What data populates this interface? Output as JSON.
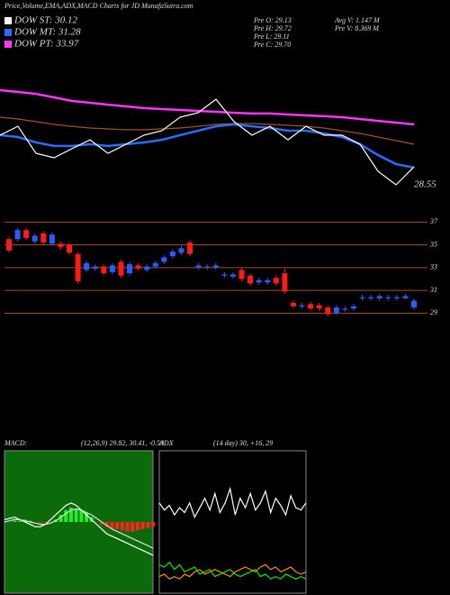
{
  "header": {
    "title": "Price,Volume,EMA,ADX,MACD Charts for JD MunafaSutra.com",
    "legend": [
      {
        "name": "DOW ST: 30.12",
        "color": "#ffffff"
      },
      {
        "name": "DOW MT: 31.28",
        "color": "#2a6bff"
      },
      {
        "name": "DOW PT: 33.97",
        "color": "#ff33ff"
      }
    ],
    "stats": [
      "Pre O: 29.13",
      "Avg V: 1.147 M",
      "Pre H: 29.72",
      "Pre V: 8.369 M",
      "Pre L: 29.11",
      "Pre C: 29.70"
    ]
  },
  "chart_data": [
    {
      "type": "candlestick",
      "ylim": [
        28,
        37.5
      ],
      "yticks": [
        37,
        35,
        33,
        31,
        29
      ],
      "grid": true,
      "grid_color": "#a0522d",
      "up_color": "#2a5cff",
      "down_color": "#ff1a1a",
      "open": [
        35.5,
        35.5,
        36.3,
        35.3,
        36,
        35.1,
        35.1,
        35,
        34.2,
        32.8,
        32.9,
        33.1,
        32.6,
        33.5,
        32.5,
        33.2,
        32.8,
        33.1,
        33.5,
        34,
        34.3,
        35.2,
        33,
        33,
        33,
        32.3,
        32.2,
        32.8,
        32.3,
        31.7,
        31.7,
        32.1,
        32.5,
        29.9,
        29.6,
        29.8,
        29.7,
        29.5,
        29,
        29.3,
        29.4,
        30.3,
        30.3,
        30.3,
        30.3,
        30.3,
        30.3,
        29.5
      ],
      "high": [
        35.7,
        36.5,
        36.5,
        36,
        36.2,
        36.1,
        35.3,
        35.2,
        34.4,
        33.6,
        33.3,
        33.3,
        33.4,
        33.7,
        33.5,
        33.4,
        33.3,
        33.6,
        34.1,
        34.6,
        34.9,
        35.4,
        33.4,
        33.3,
        33.4,
        32.6,
        32.6,
        33,
        32.5,
        32.1,
        32.1,
        32.3,
        32.9,
        30.1,
        29.9,
        30,
        29.9,
        29.7,
        29.7,
        29.6,
        29.8,
        30.6,
        30.6,
        30.7,
        30.6,
        30.6,
        30.7,
        30.3
      ],
      "low": [
        34.3,
        35.3,
        35.4,
        35.1,
        35,
        34.9,
        34.6,
        34.1,
        31.6,
        32.6,
        32.7,
        32.3,
        32.4,
        32.1,
        32.3,
        32.7,
        32.6,
        32.9,
        33.3,
        33.8,
        34.1,
        34,
        32.8,
        32.8,
        32.8,
        32.1,
        32,
        31.8,
        31.4,
        31.5,
        31.5,
        31.4,
        30.7,
        29.4,
        29.4,
        29.2,
        29.2,
        28.7,
        28.8,
        29.1,
        29.2,
        30.1,
        30.1,
        30.1,
        30.1,
        30.1,
        30.2,
        29.3
      ],
      "close": [
        34.5,
        36.3,
        35.6,
        35.8,
        35.2,
        35.9,
        34.8,
        34.3,
        31.8,
        33.4,
        33.1,
        32.5,
        33.2,
        32.3,
        33.3,
        32.9,
        33.1,
        33.4,
        33.9,
        34.4,
        34.7,
        34.2,
        33.2,
        33.1,
        33.2,
        32.4,
        32.4,
        32,
        31.6,
        31.9,
        31.9,
        31.6,
        30.9,
        29.6,
        29.7,
        29.4,
        29.4,
        28.9,
        29.5,
        29.4,
        29.6,
        30.4,
        30.4,
        30.5,
        30.4,
        30.4,
        30.5,
        30.1
      ]
    },
    {
      "type": "line",
      "ylim": [
        27,
        38
      ],
      "annotation": "28.55",
      "series": [
        {
          "color": "#ff33ff",
          "width": 2.5,
          "values": [
            36,
            35.87,
            35.73,
            35.47,
            35.2,
            35.07,
            34.93,
            34.8,
            34.67,
            34.6,
            34.53,
            34.47,
            34.4,
            34.33,
            34.27,
            34.27,
            34.2,
            34.13,
            34.07,
            34,
            33.87,
            33.73,
            33.6,
            33.47
          ]
        },
        {
          "color": "#a0522d",
          "width": 1.2,
          "values": [
            34,
            33.87,
            33.67,
            33.47,
            33.33,
            33.2,
            33.13,
            33.07,
            33.07,
            33.13,
            33.2,
            33.33,
            33.47,
            33.53,
            33.53,
            33.47,
            33.4,
            33.33,
            33.2,
            33,
            32.8,
            32.53,
            32.27,
            32
          ]
        },
        {
          "color": "#2a6bff",
          "width": 2.5,
          "values": [
            32.67,
            32.53,
            32.13,
            31.87,
            31.87,
            32,
            31.87,
            32,
            32.13,
            32.33,
            32.67,
            33,
            33.33,
            33.47,
            33.33,
            33.2,
            33,
            33,
            32.8,
            32.53,
            32,
            31.2,
            30.53,
            30.27
          ]
        },
        {
          "color": "#ffffff",
          "width": 1.2,
          "values": [
            32.67,
            33.33,
            31.33,
            31,
            31.67,
            32.33,
            31.33,
            32,
            32.67,
            33,
            34,
            34.33,
            35.33,
            33.67,
            32.67,
            33.33,
            32.33,
            33.33,
            32.67,
            32.67,
            32,
            30,
            29,
            30.33
          ]
        }
      ]
    },
    {
      "type": "macd",
      "title": "MACD:",
      "subtitle": "(12,26,9) 29.82, 30.41, -0.59",
      "ylim": [
        -3,
        3
      ],
      "background": "#0b6b0b",
      "up_color": "#22ee22",
      "down_color": "#ff2222",
      "histogram": [
        0,
        0,
        0.05,
        0.05,
        0.1,
        0.05,
        0,
        -0.05,
        -0.05,
        0,
        0.1,
        0.3,
        0.5,
        0.6,
        0.55,
        0.5,
        0.4,
        0.2,
        0,
        -0.1,
        -0.2,
        -0.3,
        -0.3,
        -0.35,
        -0.4,
        -0.4,
        -0.35,
        -0.3,
        -0.25,
        -0.2
      ],
      "series": [
        {
          "color": "#ffffff",
          "values": [
            0.1,
            0.15,
            0.2,
            0.1,
            0,
            -0.1,
            -0.2,
            -0.2,
            -0.1,
            0.1,
            0.3,
            0.5,
            0.7,
            0.8,
            0.7,
            0.5,
            0.3,
            0.1,
            -0.1,
            -0.3,
            -0.5,
            -0.6,
            -0.7,
            -0.8,
            -0.9,
            -1,
            -1.1,
            -1.2,
            -1.3,
            -1.4
          ]
        },
        {
          "color": "#dddddd",
          "values": [
            0,
            0.05,
            0.1,
            0.1,
            0.05,
            0,
            -0.05,
            -0.1,
            -0.1,
            -0.05,
            0.05,
            0.2,
            0.35,
            0.5,
            0.55,
            0.5,
            0.4,
            0.3,
            0.15,
            0,
            -0.15,
            -0.3,
            -0.4,
            -0.5,
            -0.6,
            -0.7,
            -0.8,
            -0.9,
            -1,
            -1.1
          ]
        }
      ]
    },
    {
      "type": "adx",
      "title": "ADX",
      "subtitle": "(14 day) 30, +16, 29",
      "ylim": [
        0,
        60
      ],
      "background": "#000000",
      "series": [
        {
          "color": "#ffffff",
          "values": [
            38,
            35,
            37,
            33,
            36,
            34,
            38,
            32,
            36,
            40,
            35,
            42,
            34,
            38,
            44,
            33,
            40,
            36,
            42,
            35,
            38,
            43,
            34,
            40,
            37,
            33,
            41,
            36,
            35,
            38
          ]
        },
        {
          "color": "#ff8c00",
          "values": [
            7,
            8,
            6,
            7,
            6,
            8,
            7,
            9,
            10,
            8,
            9,
            10,
            9,
            8,
            7,
            9,
            10,
            11,
            10,
            9,
            11,
            12,
            10,
            11,
            9,
            10,
            11,
            9,
            8,
            9
          ]
        },
        {
          "color": "#00ee00",
          "values": [
            12,
            11,
            13,
            10,
            12,
            9,
            10,
            11,
            8,
            9,
            10,
            7,
            8,
            9,
            10,
            8,
            7,
            8,
            9,
            10,
            7,
            8,
            6,
            7,
            6,
            8,
            7,
            6,
            7,
            6
          ]
        }
      ]
    }
  ]
}
